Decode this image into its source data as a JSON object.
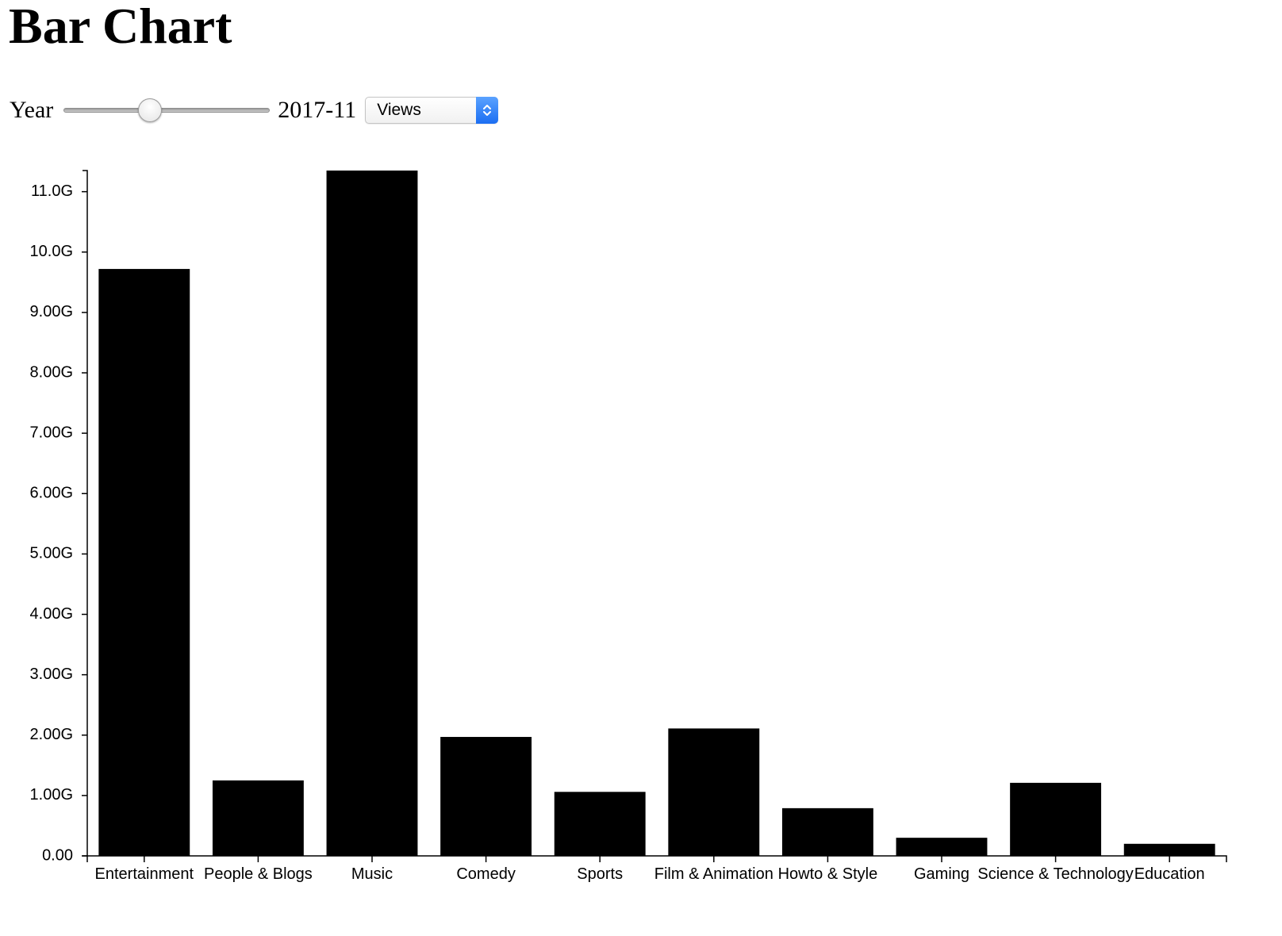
{
  "page": {
    "title": "Bar Chart"
  },
  "controls": {
    "year_label": "Year",
    "year_value": "2017-11",
    "slider_fraction": 0.42,
    "metric_selected": "Views"
  },
  "chart_data": {
    "type": "bar",
    "categories": [
      "Entertainment",
      "People & Blogs",
      "Music",
      "Comedy",
      "Sports",
      "Film & Animation",
      "Howto & Style",
      "Gaming",
      "Science & Technology",
      "Education"
    ],
    "values": [
      9720000000,
      1250000000,
      11350000000,
      1970000000,
      1060000000,
      2110000000,
      790000000,
      300000000,
      1210000000,
      200000000
    ],
    "yticks": [
      0,
      1000000000,
      2000000000,
      3000000000,
      4000000000,
      5000000000,
      6000000000,
      7000000000,
      8000000000,
      9000000000,
      10000000000,
      11000000000
    ],
    "ytick_labels": [
      "0.00",
      "1.00G",
      "2.00G",
      "3.00G",
      "4.00G",
      "5.00G",
      "6.00G",
      "7.00G",
      "8.00G",
      "9.00G",
      "10.0G",
      "11.0G"
    ],
    "ylim": [
      0,
      11350000000
    ],
    "title": "",
    "xlabel": "",
    "ylabel": "",
    "bar_color": "#000000",
    "grid": false,
    "legend": "none"
  }
}
